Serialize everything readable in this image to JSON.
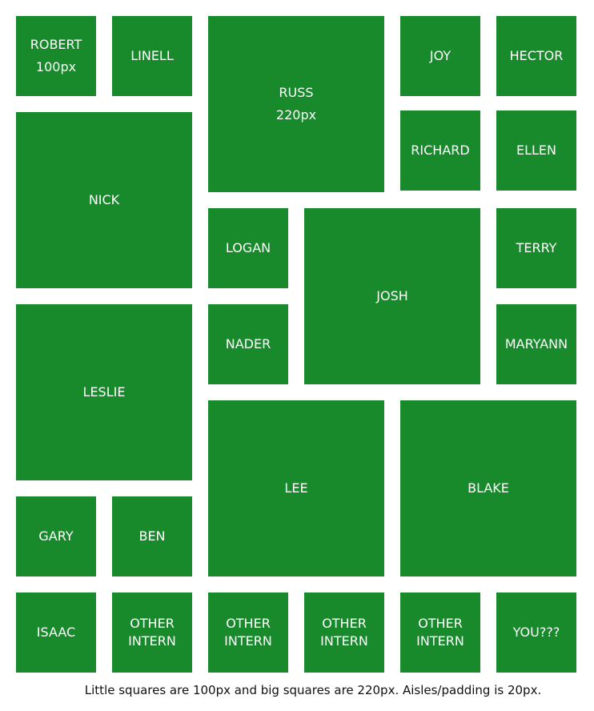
{
  "tiles": [
    {
      "id": "robert",
      "line1": "ROBERT",
      "line2": "100px"
    },
    {
      "id": "linell",
      "line1": "LINELL"
    },
    {
      "id": "russ",
      "line1": "RUSS",
      "line2": "220px"
    },
    {
      "id": "joy",
      "line1": "JOY"
    },
    {
      "id": "hector",
      "line1": "HECTOR"
    },
    {
      "id": "richard",
      "line1": "RICHARD"
    },
    {
      "id": "ellen",
      "line1": "ELLEN"
    },
    {
      "id": "nick",
      "line1": "NICK"
    },
    {
      "id": "logan",
      "line1": "LOGAN"
    },
    {
      "id": "josh",
      "line1": "JOSH"
    },
    {
      "id": "terry",
      "line1": "TERRY"
    },
    {
      "id": "nader",
      "line1": "NADER"
    },
    {
      "id": "maryann",
      "line1": "MARYANN"
    },
    {
      "id": "leslie",
      "line1": "LESLIE"
    },
    {
      "id": "lee",
      "line1": "LEE"
    },
    {
      "id": "blake",
      "line1": "BLAKE"
    },
    {
      "id": "gary",
      "line1": "GARY"
    },
    {
      "id": "ben",
      "line1": "BEN"
    },
    {
      "id": "isaac",
      "line1": "ISAAC"
    },
    {
      "id": "other-intern-1",
      "line1": "OTHER",
      "line2": "INTERN"
    },
    {
      "id": "other-intern-2",
      "line1": "OTHER",
      "line2": "INTERN"
    },
    {
      "id": "other-intern-3",
      "line1": "OTHER",
      "line2": "INTERN"
    },
    {
      "id": "other-intern-4",
      "line1": "OTHER",
      "line2": "INTERN"
    },
    {
      "id": "you",
      "line1": "YOU???"
    }
  ],
  "caption": "Little squares are 100px and big squares are 220px. Aisles/padding is 20px.",
  "colors": {
    "tile": "#188a2c",
    "text": "#ffffff",
    "caption": "#111111"
  }
}
